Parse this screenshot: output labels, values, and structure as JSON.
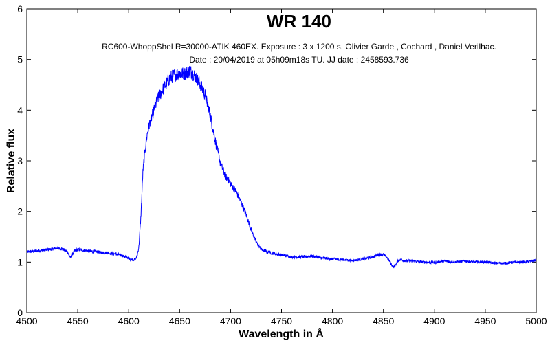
{
  "chart_data": {
    "type": "line",
    "title": "WR 140",
    "subtitle_lines": [
      "RC600-WhoppShel R=30000-ATIK 460EX. Exposure : 3 x 1200 s. Olivier Garde , Cochard , Daniel Verilhac.",
      "Date : 20/04/2019 at 05h09m18s TU. JJ date : 2458593.736"
    ],
    "xlabel": "Wavelength in Å",
    "ylabel": "Relative flux",
    "xlim": [
      4500,
      5000
    ],
    "ylim": [
      0,
      6
    ],
    "xticks": [
      4500,
      4550,
      4600,
      4650,
      4700,
      4750,
      4800,
      4850,
      4900,
      4950,
      5000
    ],
    "yticks": [
      0,
      1,
      2,
      3,
      4,
      5,
      6
    ],
    "grid": false,
    "line_color": "#0000ff",
    "series": [
      {
        "x": [
          4500,
          4510,
          4520,
          4530,
          4535,
          4540,
          4543,
          4546,
          4550,
          4560,
          4570,
          4580,
          4590,
          4598,
          4602,
          4606,
          4608,
          4610,
          4612,
          4614,
          4616,
          4618,
          4620,
          4624,
          4628,
          4632,
          4636,
          4640,
          4645,
          4650,
          4655,
          4660,
          4665,
          4670,
          4675,
          4680,
          4685,
          4690,
          4695,
          4700,
          4705,
          4710,
          4715,
          4720,
          4725,
          4730,
          4740,
          4750,
          4760,
          4770,
          4780,
          4790,
          4800,
          4810,
          4820,
          4830,
          4840,
          4845,
          4850,
          4853,
          4856,
          4858,
          4860,
          4862,
          4864,
          4866,
          4870,
          4880,
          4890,
          4900,
          4910,
          4920,
          4930,
          4940,
          4950,
          4960,
          4970,
          4980,
          4990,
          5000
        ],
        "y": [
          1.2,
          1.22,
          1.24,
          1.28,
          1.26,
          1.2,
          1.08,
          1.2,
          1.25,
          1.22,
          1.2,
          1.18,
          1.15,
          1.1,
          1.05,
          1.05,
          1.1,
          1.3,
          1.9,
          2.8,
          3.2,
          3.5,
          3.7,
          3.95,
          4.2,
          4.35,
          4.5,
          4.62,
          4.7,
          4.72,
          4.72,
          4.78,
          4.68,
          4.52,
          4.3,
          3.9,
          3.4,
          2.95,
          2.7,
          2.55,
          2.4,
          2.2,
          1.95,
          1.65,
          1.4,
          1.25,
          1.18,
          1.14,
          1.1,
          1.1,
          1.12,
          1.08,
          1.06,
          1.05,
          1.03,
          1.06,
          1.1,
          1.15,
          1.15,
          1.1,
          1.02,
          0.95,
          0.9,
          0.95,
          1.02,
          1.05,
          1.03,
          1.02,
          1.0,
          0.99,
          1.02,
          1.0,
          1.02,
          1.0,
          1.0,
          0.98,
          0.98,
          1.0,
          1.0,
          1.04
        ]
      }
    ]
  }
}
